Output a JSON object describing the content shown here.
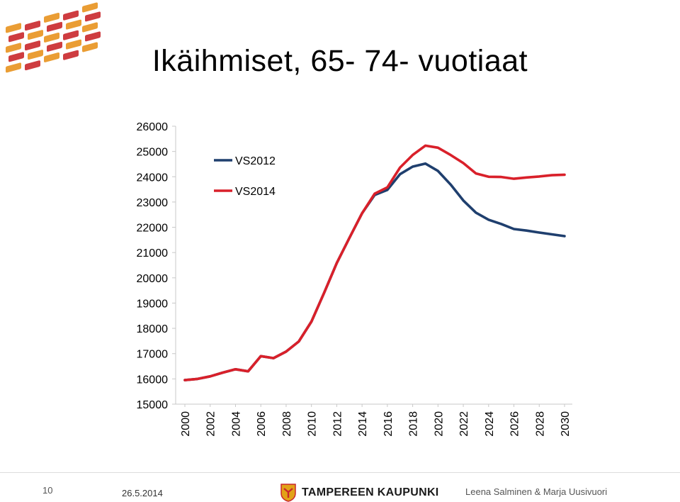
{
  "title": "Ikäihmiset, 65- 74- vuotiaat",
  "chart_data": {
    "type": "line",
    "title": "Ikäihmiset, 65- 74- vuotiaat",
    "xlabel": "",
    "ylabel": "",
    "ylim": [
      15000,
      26000
    ],
    "y_ticks": [
      15000,
      16000,
      17000,
      18000,
      19000,
      20000,
      21000,
      22000,
      23000,
      24000,
      25000,
      26000
    ],
    "x_tick_labels": [
      "2000",
      "2002",
      "2004",
      "2006",
      "2008",
      "2010",
      "2012",
      "2014",
      "2016",
      "2018",
      "2020",
      "2022",
      "2024",
      "2026",
      "2028",
      "2030"
    ],
    "x": [
      2000,
      2001,
      2002,
      2003,
      2004,
      2005,
      2006,
      2007,
      2008,
      2009,
      2010,
      2011,
      2012,
      2013,
      2014,
      2015,
      2016,
      2017,
      2018,
      2019,
      2020,
      2021,
      2022,
      2023,
      2024,
      2025,
      2026,
      2027,
      2028,
      2029,
      2030
    ],
    "grid": false,
    "legend_position": "top-left",
    "series": [
      {
        "name": "VS2012",
        "color": "#1f3f6e",
        "values": [
          15950,
          16000,
          16100,
          16250,
          16380,
          16300,
          16900,
          16820,
          17080,
          17480,
          18270,
          19400,
          20580,
          21580,
          22550,
          23280,
          23480,
          24100,
          24400,
          24520,
          24230,
          23690,
          23060,
          22580,
          22300,
          22130,
          21930,
          21870,
          21790,
          21720,
          21650
        ]
      },
      {
        "name": "VS2014",
        "color": "#d9202a",
        "values": [
          15950,
          16000,
          16100,
          16250,
          16380,
          16300,
          16900,
          16820,
          17080,
          17480,
          18270,
          19400,
          20580,
          21580,
          22550,
          23330,
          23580,
          24360,
          24860,
          25230,
          25150,
          24860,
          24540,
          24130,
          24000,
          23990,
          23920,
          23970,
          24010,
          24060,
          24080
        ]
      }
    ]
  },
  "footer": {
    "page_number": "10",
    "date": "26.5.2014",
    "brand": "TAMPEREEN KAUPUNKI",
    "authors": "Leena Salminen & Marja Uusivuori"
  },
  "colors": {
    "logo_orange": "#e8921e",
    "logo_red": "#c9272b",
    "axis": "#c8c8c8"
  }
}
